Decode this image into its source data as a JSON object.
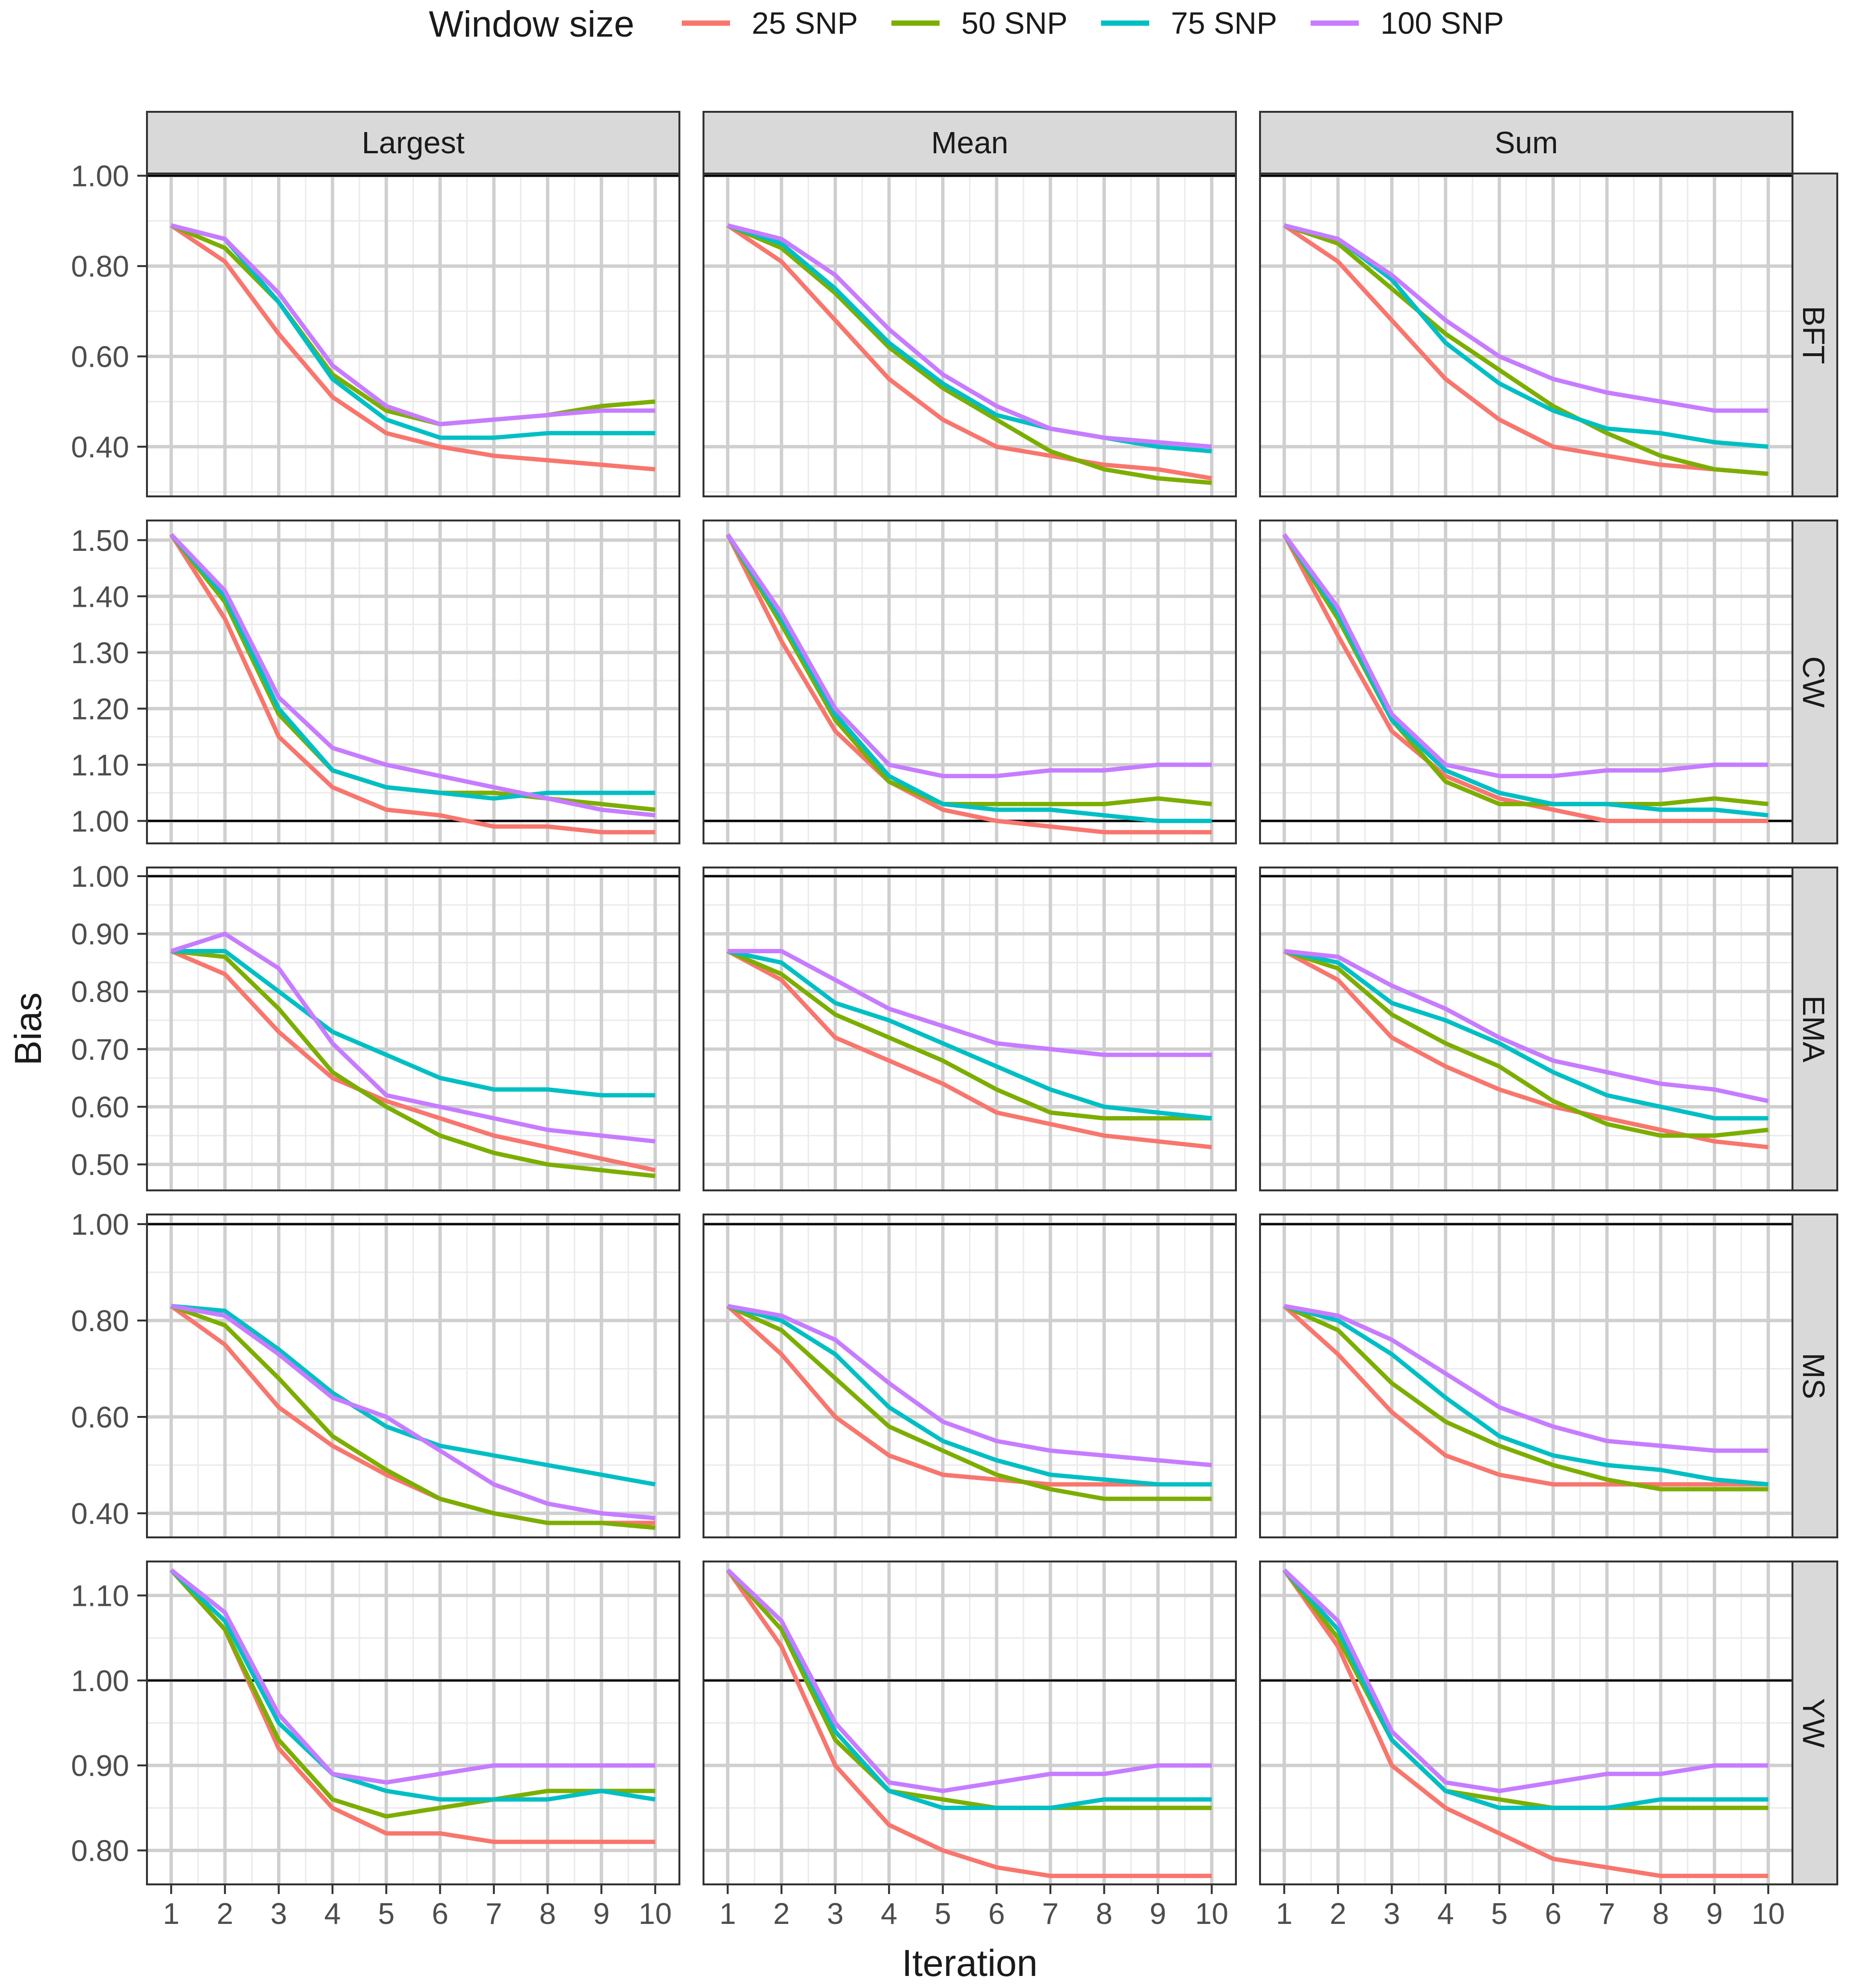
{
  "chart_data": {
    "type": "line",
    "xlabel": "Iteration",
    "ylabel": "Bias",
    "legend_title": "Window size",
    "legend_position": "top",
    "x": [
      1,
      2,
      3,
      4,
      5,
      6,
      7,
      8,
      9,
      10
    ],
    "x_ticks": [
      "1",
      "2",
      "3",
      "4",
      "5",
      "6",
      "7",
      "8",
      "9",
      "10"
    ],
    "reference_line": 1.0,
    "series": [
      {
        "name": "25 SNP",
        "color": "#F8766D"
      },
      {
        "name": "50 SNP",
        "color": "#7CAE00"
      },
      {
        "name": "75 SNP",
        "color": "#00BFC4"
      },
      {
        "name": "100 SNP",
        "color": "#C77CFF"
      }
    ],
    "columns": [
      "Largest",
      "Mean",
      "Sum"
    ],
    "rows": [
      {
        "label": "BFT",
        "ylim": [
          0.29,
          1.005
        ],
        "y_ticks": [
          0.4,
          0.6,
          0.8,
          1.0
        ],
        "y_tick_labels": [
          "0.40",
          "0.60",
          "0.80",
          "1.00"
        ],
        "panels": [
          [
            [
              0.89,
              0.81,
              0.65,
              0.51,
              0.43,
              0.4,
              0.38,
              0.37,
              0.36,
              0.35
            ],
            [
              0.89,
              0.84,
              0.72,
              0.56,
              0.48,
              0.45,
              0.46,
              0.47,
              0.49,
              0.5
            ],
            [
              0.89,
              0.86,
              0.72,
              0.55,
              0.46,
              0.42,
              0.42,
              0.43,
              0.43,
              0.43
            ],
            [
              0.89,
              0.86,
              0.74,
              0.58,
              0.49,
              0.45,
              0.46,
              0.47,
              0.48,
              0.48
            ]
          ],
          [
            [
              0.89,
              0.81,
              0.68,
              0.55,
              0.46,
              0.4,
              0.38,
              0.36,
              0.35,
              0.33
            ],
            [
              0.89,
              0.84,
              0.74,
              0.62,
              0.53,
              0.46,
              0.39,
              0.35,
              0.33,
              0.32
            ],
            [
              0.89,
              0.85,
              0.75,
              0.63,
              0.54,
              0.47,
              0.44,
              0.42,
              0.4,
              0.39
            ],
            [
              0.89,
              0.86,
              0.78,
              0.66,
              0.56,
              0.49,
              0.44,
              0.42,
              0.41,
              0.4
            ]
          ],
          [
            [
              0.89,
              0.81,
              0.68,
              0.55,
              0.46,
              0.4,
              0.38,
              0.36,
              0.35,
              0.34
            ],
            [
              0.89,
              0.85,
              0.75,
              0.65,
              0.57,
              0.49,
              0.43,
              0.38,
              0.35,
              0.34
            ],
            [
              0.89,
              0.86,
              0.77,
              0.63,
              0.54,
              0.48,
              0.44,
              0.43,
              0.41,
              0.4
            ],
            [
              0.89,
              0.86,
              0.78,
              0.68,
              0.6,
              0.55,
              0.52,
              0.5,
              0.48,
              0.48
            ]
          ]
        ]
      },
      {
        "label": "CW",
        "ylim": [
          0.96,
          1.535
        ],
        "y_ticks": [
          1.0,
          1.1,
          1.2,
          1.3,
          1.4,
          1.5
        ],
        "y_tick_labels": [
          "1.00",
          "1.10",
          "1.20",
          "1.30",
          "1.40",
          "1.50"
        ],
        "panels": [
          [
            [
              1.51,
              1.36,
              1.15,
              1.06,
              1.02,
              1.01,
              0.99,
              0.99,
              0.98,
              0.98
            ],
            [
              1.51,
              1.39,
              1.19,
              1.09,
              1.06,
              1.05,
              1.05,
              1.04,
              1.03,
              1.02
            ],
            [
              1.51,
              1.4,
              1.2,
              1.09,
              1.06,
              1.05,
              1.04,
              1.05,
              1.05,
              1.05
            ],
            [
              1.51,
              1.41,
              1.22,
              1.13,
              1.1,
              1.08,
              1.06,
              1.04,
              1.02,
              1.01
            ]
          ],
          [
            [
              1.51,
              1.32,
              1.16,
              1.07,
              1.02,
              1.0,
              0.99,
              0.98,
              0.98,
              0.98
            ],
            [
              1.51,
              1.35,
              1.18,
              1.07,
              1.03,
              1.03,
              1.03,
              1.03,
              1.04,
              1.03
            ],
            [
              1.51,
              1.36,
              1.19,
              1.08,
              1.03,
              1.02,
              1.02,
              1.01,
              1.0,
              1.0
            ],
            [
              1.51,
              1.37,
              1.2,
              1.1,
              1.08,
              1.08,
              1.09,
              1.09,
              1.1,
              1.1
            ]
          ],
          [
            [
              1.51,
              1.33,
              1.16,
              1.08,
              1.04,
              1.02,
              1.0,
              1.0,
              1.0,
              1.0
            ],
            [
              1.51,
              1.36,
              1.18,
              1.07,
              1.03,
              1.03,
              1.03,
              1.03,
              1.04,
              1.03
            ],
            [
              1.51,
              1.37,
              1.18,
              1.09,
              1.05,
              1.03,
              1.03,
              1.02,
              1.02,
              1.01
            ],
            [
              1.51,
              1.38,
              1.19,
              1.1,
              1.08,
              1.08,
              1.09,
              1.09,
              1.1,
              1.1
            ]
          ]
        ]
      },
      {
        "label": "EMA",
        "ylim": [
          0.455,
          1.015
        ],
        "y_ticks": [
          0.5,
          0.6,
          0.7,
          0.8,
          0.9,
          1.0
        ],
        "y_tick_labels": [
          "0.50",
          "0.60",
          "0.70",
          "0.80",
          "0.90",
          "1.00"
        ],
        "panels": [
          [
            [
              0.87,
              0.83,
              0.73,
              0.65,
              0.61,
              0.58,
              0.55,
              0.53,
              0.51,
              0.49
            ],
            [
              0.87,
              0.86,
              0.77,
              0.66,
              0.6,
              0.55,
              0.52,
              0.5,
              0.49,
              0.48
            ],
            [
              0.87,
              0.87,
              0.8,
              0.73,
              0.69,
              0.65,
              0.63,
              0.63,
              0.62,
              0.62
            ],
            [
              0.87,
              0.9,
              0.84,
              0.71,
              0.62,
              0.6,
              0.58,
              0.56,
              0.55,
              0.54
            ]
          ],
          [
            [
              0.87,
              0.82,
              0.72,
              0.68,
              0.64,
              0.59,
              0.57,
              0.55,
              0.54,
              0.53
            ],
            [
              0.87,
              0.83,
              0.76,
              0.72,
              0.68,
              0.63,
              0.59,
              0.58,
              0.58,
              0.58
            ],
            [
              0.87,
              0.85,
              0.78,
              0.75,
              0.71,
              0.67,
              0.63,
              0.6,
              0.59,
              0.58
            ],
            [
              0.87,
              0.87,
              0.82,
              0.77,
              0.74,
              0.71,
              0.7,
              0.69,
              0.69,
              0.69
            ]
          ],
          [
            [
              0.87,
              0.82,
              0.72,
              0.67,
              0.63,
              0.6,
              0.58,
              0.56,
              0.54,
              0.53
            ],
            [
              0.87,
              0.84,
              0.76,
              0.71,
              0.67,
              0.61,
              0.57,
              0.55,
              0.55,
              0.56
            ],
            [
              0.87,
              0.85,
              0.78,
              0.75,
              0.71,
              0.66,
              0.62,
              0.6,
              0.58,
              0.58
            ],
            [
              0.87,
              0.86,
              0.81,
              0.77,
              0.72,
              0.68,
              0.66,
              0.64,
              0.63,
              0.61
            ]
          ]
        ]
      },
      {
        "label": "MS",
        "ylim": [
          0.35,
          1.02
        ],
        "y_ticks": [
          0.4,
          0.6,
          0.8,
          1.0
        ],
        "y_tick_labels": [
          "0.40",
          "0.60",
          "0.80",
          "1.00"
        ],
        "panels": [
          [
            [
              0.83,
              0.75,
              0.62,
              0.54,
              0.48,
              0.43,
              0.4,
              0.38,
              0.38,
              0.38
            ],
            [
              0.83,
              0.79,
              0.68,
              0.56,
              0.49,
              0.43,
              0.4,
              0.38,
              0.38,
              0.37
            ],
            [
              0.83,
              0.82,
              0.74,
              0.65,
              0.58,
              0.54,
              0.52,
              0.5,
              0.48,
              0.46
            ],
            [
              0.83,
              0.81,
              0.73,
              0.64,
              0.6,
              0.53,
              0.46,
              0.42,
              0.4,
              0.39
            ]
          ],
          [
            [
              0.83,
              0.73,
              0.6,
              0.52,
              0.48,
              0.47,
              0.46,
              0.46,
              0.46,
              0.46
            ],
            [
              0.83,
              0.78,
              0.68,
              0.58,
              0.53,
              0.48,
              0.45,
              0.43,
              0.43,
              0.43
            ],
            [
              0.83,
              0.8,
              0.73,
              0.62,
              0.55,
              0.51,
              0.48,
              0.47,
              0.46,
              0.46
            ],
            [
              0.83,
              0.81,
              0.76,
              0.67,
              0.59,
              0.55,
              0.53,
              0.52,
              0.51,
              0.5
            ]
          ],
          [
            [
              0.83,
              0.73,
              0.61,
              0.52,
              0.48,
              0.46,
              0.46,
              0.46,
              0.46,
              0.46
            ],
            [
              0.83,
              0.78,
              0.67,
              0.59,
              0.54,
              0.5,
              0.47,
              0.45,
              0.45,
              0.45
            ],
            [
              0.83,
              0.8,
              0.73,
              0.64,
              0.56,
              0.52,
              0.5,
              0.49,
              0.47,
              0.46
            ],
            [
              0.83,
              0.81,
              0.76,
              0.69,
              0.62,
              0.58,
              0.55,
              0.54,
              0.53,
              0.53
            ]
          ]
        ]
      },
      {
        "label": "YW",
        "ylim": [
          0.76,
          1.14
        ],
        "y_ticks": [
          0.8,
          0.9,
          1.0,
          1.1
        ],
        "y_tick_labels": [
          "0.80",
          "0.90",
          "1.00",
          "1.10"
        ],
        "panels": [
          [
            [
              1.13,
              1.06,
              0.92,
              0.85,
              0.82,
              0.82,
              0.81,
              0.81,
              0.81,
              0.81
            ],
            [
              1.13,
              1.06,
              0.93,
              0.86,
              0.84,
              0.85,
              0.86,
              0.87,
              0.87,
              0.87
            ],
            [
              1.13,
              1.07,
              0.95,
              0.89,
              0.87,
              0.86,
              0.86,
              0.86,
              0.87,
              0.86
            ],
            [
              1.13,
              1.08,
              0.96,
              0.89,
              0.88,
              0.89,
              0.9,
              0.9,
              0.9,
              0.9
            ]
          ],
          [
            [
              1.13,
              1.04,
              0.9,
              0.83,
              0.8,
              0.78,
              0.77,
              0.77,
              0.77,
              0.77
            ],
            [
              1.13,
              1.06,
              0.93,
              0.87,
              0.86,
              0.85,
              0.85,
              0.85,
              0.85,
              0.85
            ],
            [
              1.13,
              1.07,
              0.94,
              0.87,
              0.85,
              0.85,
              0.85,
              0.86,
              0.86,
              0.86
            ],
            [
              1.13,
              1.07,
              0.95,
              0.88,
              0.87,
              0.88,
              0.89,
              0.89,
              0.9,
              0.9
            ]
          ],
          [
            [
              1.13,
              1.04,
              0.9,
              0.85,
              0.82,
              0.79,
              0.78,
              0.77,
              0.77,
              0.77
            ],
            [
              1.13,
              1.05,
              0.93,
              0.87,
              0.86,
              0.85,
              0.85,
              0.85,
              0.85,
              0.85
            ],
            [
              1.13,
              1.06,
              0.93,
              0.87,
              0.85,
              0.85,
              0.85,
              0.86,
              0.86,
              0.86
            ],
            [
              1.13,
              1.07,
              0.94,
              0.88,
              0.87,
              0.88,
              0.89,
              0.89,
              0.9,
              0.9
            ]
          ]
        ]
      }
    ]
  }
}
